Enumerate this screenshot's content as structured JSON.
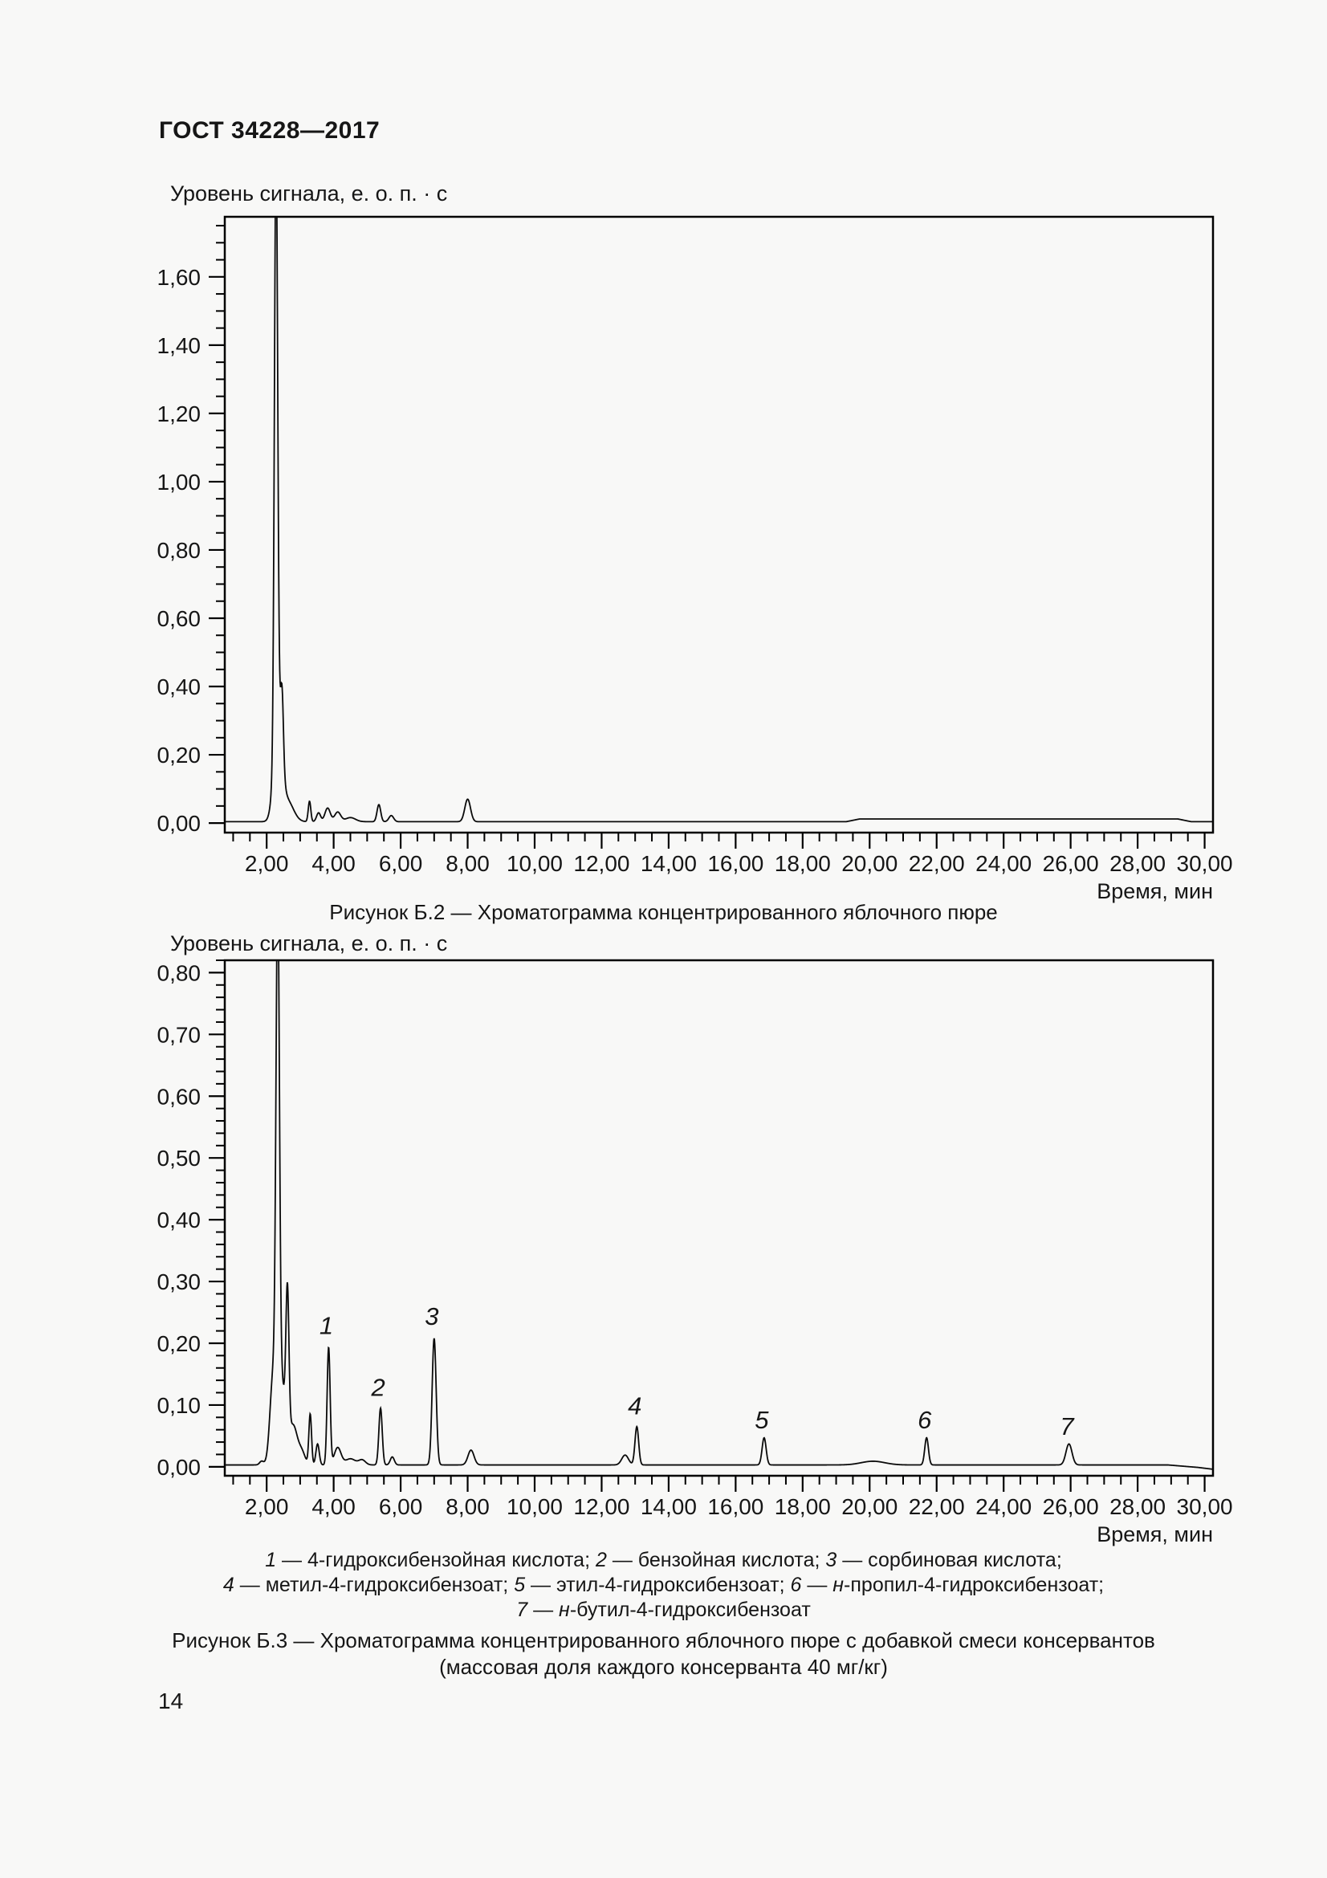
{
  "page": {
    "header": "ГОСТ 34228—2017",
    "page_number": "14"
  },
  "figure_b3_legend": {
    "lines": [
      [
        {
          "t": "1",
          "i": 1
        },
        {
          "t": " — 4-гидроксибензойная кислота; ",
          "i": 0
        },
        {
          "t": "2",
          "i": 1
        },
        {
          "t": " — бензойная кислота; ",
          "i": 0
        },
        {
          "t": "3",
          "i": 1
        },
        {
          "t": " — сорбиновая кислота;",
          "i": 0
        }
      ],
      [
        {
          "t": "4",
          "i": 1
        },
        {
          "t": " — метил-4-гидроксибензоат; ",
          "i": 0
        },
        {
          "t": "5",
          "i": 1
        },
        {
          "t": " — этил-4-гидроксибензоат; ",
          "i": 0
        },
        {
          "t": "6",
          "i": 1
        },
        {
          "t": " — ",
          "i": 0
        },
        {
          "t": "н",
          "i": 1
        },
        {
          "t": "-пропил-4-гидроксибензоат;",
          "i": 0
        }
      ],
      [
        {
          "t": "7",
          "i": 1
        },
        {
          "t": " — ",
          "i": 0
        },
        {
          "t": "н",
          "i": 1
        },
        {
          "t": "-бутил-4-гидроксибензоат",
          "i": 0
        }
      ]
    ]
  },
  "chart_data": [
    {
      "id": "figure-b2",
      "type": "line",
      "title": "Рисунок Б.2 — Хроматограмма концентрированного яблочного пюре",
      "xlabel": "Время, мин",
      "ylabel": "Уровень сигнала, е. о. п. · с",
      "xlim": [
        0.75,
        30.25
      ],
      "ylim": [
        -0.028,
        1.776
      ],
      "grid": false,
      "x_major_ticks": [
        2,
        4,
        6,
        8,
        10,
        12,
        14,
        16,
        18,
        20,
        22,
        24,
        26,
        28,
        30
      ],
      "x_tick_labels": [
        "2,00",
        "4,00",
        "6,00",
        "8,00",
        "10,00",
        "12,00",
        "14,00",
        "16,00",
        "18,00",
        "20,00",
        "22,00",
        "24,00",
        "26,00",
        "28,00",
        "30,00"
      ],
      "x_minor_step": 0.5,
      "y_major_ticks": [
        0,
        0.2,
        0.4,
        0.6,
        0.8,
        1.0,
        1.2,
        1.4,
        1.6
      ],
      "y_tick_labels": [
        "0,00",
        "0,20",
        "0,40",
        "0,60",
        "0,80",
        "1,00",
        "1,20",
        "1,40",
        "1,60"
      ],
      "y_minor_step": 0.05,
      "peaks": [
        {
          "t": 2.28,
          "h": 1.72,
          "w": 0.048
        },
        {
          "t": 2.33,
          "h": 0.28,
          "w": 0.12
        },
        {
          "t": 2.46,
          "h": 0.2,
          "w": 0.042
        },
        {
          "t": 2.62,
          "h": 0.06,
          "w": 0.18
        },
        {
          "t": 3.28,
          "h": 0.06,
          "w": 0.038
        },
        {
          "t": 3.55,
          "h": 0.026,
          "w": 0.06
        },
        {
          "t": 3.82,
          "h": 0.04,
          "w": 0.08
        },
        {
          "t": 4.12,
          "h": 0.028,
          "w": 0.09
        },
        {
          "t": 4.5,
          "h": 0.012,
          "w": 0.15
        },
        {
          "t": 5.35,
          "h": 0.05,
          "w": 0.055
        },
        {
          "t": 5.72,
          "h": 0.018,
          "w": 0.07
        },
        {
          "t": 8.0,
          "h": 0.066,
          "w": 0.085
        }
      ],
      "baseline": [
        [
          0.75,
          0.004
        ],
        [
          19.3,
          0.004
        ],
        [
          19.7,
          0.012
        ],
        [
          29.2,
          0.012
        ],
        [
          29.6,
          0.004
        ],
        [
          30.25,
          0.004
        ]
      ],
      "peak_labels": []
    },
    {
      "id": "figure-b3",
      "type": "line",
      "title": "Рисунок Б.3 — Хроматограмма концентрированного яблочного пюре с добавкой смеси консервантов",
      "subtitle": "(массовая доля каждого консерванта 40 мг/кг)",
      "xlabel": "Время, мин",
      "ylabel": "Уровень сигнала, е. о. п. · с",
      "xlim": [
        0.75,
        30.25
      ],
      "ylim": [
        -0.0145,
        0.82
      ],
      "grid": false,
      "x_major_ticks": [
        2,
        4,
        6,
        8,
        10,
        12,
        14,
        16,
        18,
        20,
        22,
        24,
        26,
        28,
        30
      ],
      "x_tick_labels": [
        "2,00",
        "4,00",
        "6,00",
        "8,00",
        "10,00",
        "12,00",
        "14,00",
        "16,00",
        "18,00",
        "20,00",
        "22,00",
        "24,00",
        "26,00",
        "28,00",
        "30,00"
      ],
      "x_minor_step": 0.5,
      "y_major_ticks": [
        0,
        0.1,
        0.2,
        0.3,
        0.4,
        0.5,
        0.6,
        0.7,
        0.8
      ],
      "y_tick_labels": [
        "0,00",
        "0,10",
        "0,20",
        "0,30",
        "0,40",
        "0,50",
        "0,60",
        "0,70",
        "0,80"
      ],
      "y_minor_step": 0.02,
      "peaks": [
        {
          "t": 1.85,
          "h": 0.006,
          "w": 0.06
        },
        {
          "t": 2.18,
          "h": 0.1,
          "w": 0.09
        },
        {
          "t": 2.33,
          "h": 0.78,
          "w": 0.05
        },
        {
          "t": 2.4,
          "h": 0.15,
          "w": 0.15
        },
        {
          "t": 2.62,
          "h": 0.225,
          "w": 0.045
        },
        {
          "t": 2.8,
          "h": 0.06,
          "w": 0.12
        },
        {
          "t": 3.05,
          "h": 0.02,
          "w": 0.1
        },
        {
          "t": 3.3,
          "h": 0.082,
          "w": 0.04
        },
        {
          "t": 3.52,
          "h": 0.034,
          "w": 0.05
        },
        {
          "t": 3.85,
          "h": 0.19,
          "w": 0.045
        },
        {
          "t": 4.12,
          "h": 0.028,
          "w": 0.1
        },
        {
          "t": 4.5,
          "h": 0.01,
          "w": 0.15
        },
        {
          "t": 4.85,
          "h": 0.008,
          "w": 0.1
        },
        {
          "t": 5.4,
          "h": 0.092,
          "w": 0.05
        },
        {
          "t": 5.75,
          "h": 0.013,
          "w": 0.06
        },
        {
          "t": 7.0,
          "h": 0.205,
          "w": 0.06
        },
        {
          "t": 8.1,
          "h": 0.024,
          "w": 0.09
        },
        {
          "t": 12.7,
          "h": 0.016,
          "w": 0.1
        },
        {
          "t": 13.05,
          "h": 0.062,
          "w": 0.055
        },
        {
          "t": 16.85,
          "h": 0.044,
          "w": 0.06
        },
        {
          "t": 20.1,
          "h": 0.006,
          "w": 0.35
        },
        {
          "t": 21.7,
          "h": 0.044,
          "w": 0.055
        },
        {
          "t": 25.95,
          "h": 0.034,
          "w": 0.09
        }
      ],
      "baseline": [
        [
          0.75,
          0.003
        ],
        [
          28.9,
          0.003
        ],
        [
          29.8,
          -0.001
        ],
        [
          30.25,
          -0.004
        ]
      ],
      "peak_labels": [
        {
          "label": "1",
          "t": 3.78,
          "v": 0.215
        },
        {
          "label": "2",
          "t": 5.33,
          "v": 0.115
        },
        {
          "label": "3",
          "t": 6.93,
          "v": 0.23
        },
        {
          "label": "4",
          "t": 12.99,
          "v": 0.085
        },
        {
          "label": "5",
          "t": 16.78,
          "v": 0.062
        },
        {
          "label": "6",
          "t": 21.64,
          "v": 0.062
        },
        {
          "label": "7",
          "t": 25.89,
          "v": 0.052
        }
      ]
    }
  ]
}
